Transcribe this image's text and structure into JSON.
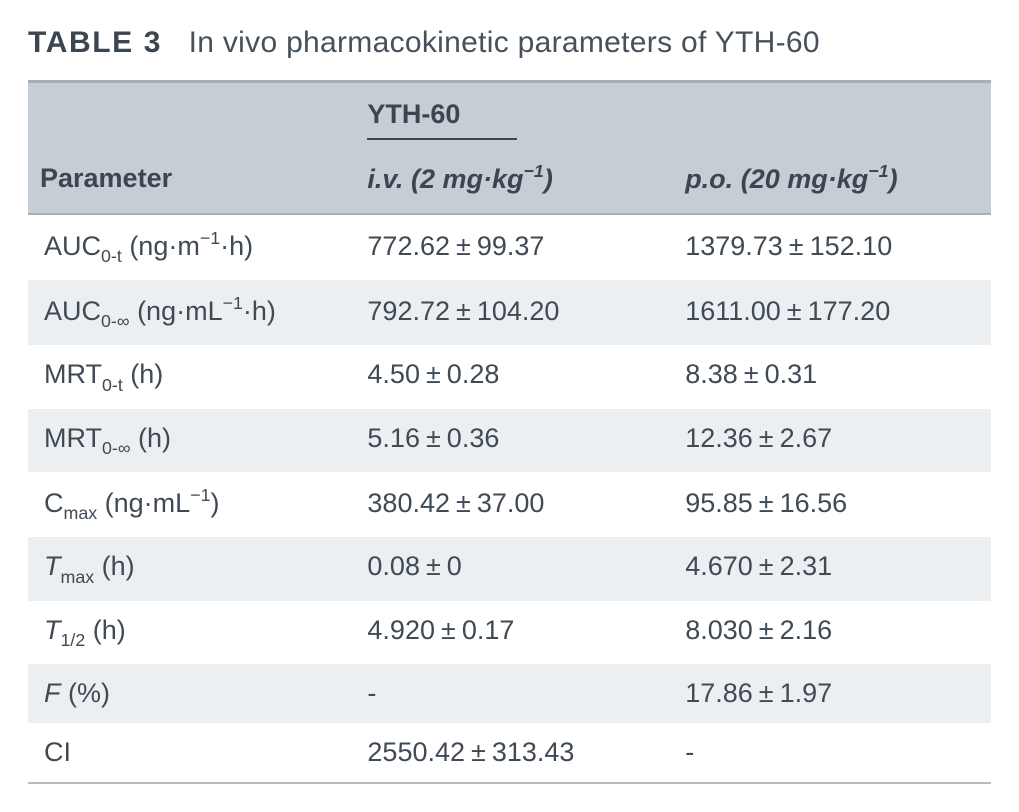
{
  "caption": {
    "label": "TABLE 3",
    "title": "In vivo pharmacokinetic parameters of YTH-60"
  },
  "header": {
    "spanner": "YTH-60",
    "param_heading": "Parameter",
    "routes": {
      "iv": {
        "abbr": "i.v.",
        "dose_value": "2",
        "dose_unit_prefix": "mg·kg",
        "dose_unit_exp": "−1"
      },
      "po": {
        "abbr": "p.o.",
        "dose_value": "20",
        "dose_unit_prefix": "mg·kg",
        "dose_unit_exp": "−1"
      }
    }
  },
  "rows": [
    {
      "param": {
        "pre": "AUC",
        "sub": "0-t",
        "post": " (ng·m",
        "sup": "−1",
        "post2": "·h)"
      },
      "iv": {
        "mean": "772.62",
        "sd": "99.37"
      },
      "po": {
        "mean": "1379.73",
        "sd": "152.10"
      }
    },
    {
      "param": {
        "pre": "AUC",
        "sub": "0-∞",
        "post": " (ng·mL",
        "sup": "−1",
        "post2": "·h)"
      },
      "iv": {
        "mean": "792.72",
        "sd": "104.20"
      },
      "po": {
        "mean": "1611.00",
        "sd": "177.20"
      }
    },
    {
      "param": {
        "pre": "MRT",
        "sub": "0-t",
        "post": " (h)"
      },
      "iv": {
        "mean": "4.50",
        "sd": "0.28"
      },
      "po": {
        "mean": "8.38",
        "sd": "0.31"
      }
    },
    {
      "param": {
        "pre": "MRT",
        "sub": "0-∞",
        "post": " (h)"
      },
      "iv": {
        "mean": "5.16",
        "sd": "0.36"
      },
      "po": {
        "mean": "12.36",
        "sd": "2.67"
      }
    },
    {
      "param": {
        "pre": "C",
        "sub": "max",
        "post": " (ng·mL",
        "sup": "−1",
        "post2": ")"
      },
      "iv": {
        "mean": "380.42",
        "sd": "37.00"
      },
      "po": {
        "mean": "95.85",
        "sd": "16.56"
      }
    },
    {
      "param": {
        "ital_pre": "T",
        "sub": "max",
        "post": " (h)"
      },
      "iv": {
        "mean": "0.08",
        "sd": "0"
      },
      "po": {
        "mean": "4.670",
        "sd": "2.31"
      }
    },
    {
      "param": {
        "ital_pre": "T",
        "sub": "1/2",
        "post": " (h)"
      },
      "iv": {
        "mean": "4.920",
        "sd": "0.17"
      },
      "po": {
        "mean": "8.030",
        "sd": "2.16"
      }
    },
    {
      "param": {
        "ital_pre": "F",
        "post": " (%)"
      },
      "iv": {
        "text": "-"
      },
      "po": {
        "mean": "17.86",
        "sd": "1.97"
      }
    },
    {
      "param": {
        "pre": "CI"
      },
      "iv": {
        "mean": "2550.42",
        "sd": "313.43"
      },
      "po": {
        "text": "-"
      }
    }
  ],
  "style": {
    "colors": {
      "background": "#ffffff",
      "header_bg": "#c6cdd4",
      "stripe_bg": "#eceff2",
      "text": "#3f4a55",
      "rule": "#a7afb8"
    },
    "font_sizes_pt": {
      "caption": 22,
      "header": 20,
      "body": 20
    },
    "columns": [
      "Parameter",
      "i.v. (2 mg·kg⁻¹)",
      "p.o. (20 mg·kg⁻¹)"
    ],
    "col_widths_pct": [
      34,
      33,
      33
    ]
  }
}
